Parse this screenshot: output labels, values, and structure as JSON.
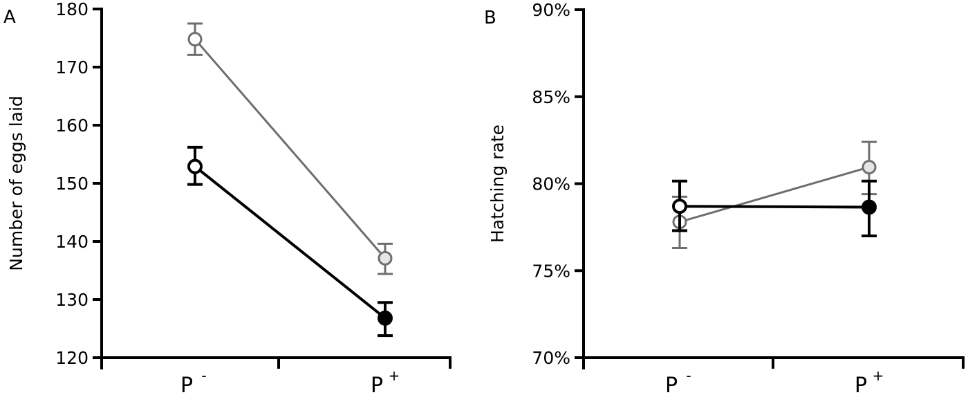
{
  "chart_data": [
    {
      "panel": "A",
      "type": "line",
      "title": "",
      "xlabel": "",
      "ylabel": "Number of eggs laid",
      "categories": [
        "P -",
        "P +"
      ],
      "ylim": [
        120,
        180
      ],
      "yticks": [
        120,
        130,
        140,
        150,
        160,
        170,
        180
      ],
      "ytick_labels": [
        "120",
        "130",
        "140",
        "150",
        "160",
        "170",
        "180"
      ],
      "grid": false,
      "series": [
        {
          "name": "gray (light open/filled markers)",
          "color": "#6e6e6e",
          "marker_fill": [
            "#ffffff",
            "#e6e6e6"
          ],
          "values": [
            174.8,
            137.1
          ],
          "error_low": [
            172.1,
            134.4
          ],
          "error_high": [
            177.5,
            139.6
          ]
        },
        {
          "name": "black",
          "color": "#000000",
          "marker_fill": [
            "#ffffff",
            "#000000"
          ],
          "values": [
            152.9,
            126.8
          ],
          "error_low": [
            149.8,
            123.8
          ],
          "error_high": [
            156.2,
            129.5
          ]
        }
      ]
    },
    {
      "panel": "B",
      "type": "line",
      "title": "",
      "xlabel": "",
      "ylabel": "Hatching rate",
      "categories": [
        "P -",
        "P +"
      ],
      "ylim": [
        70,
        90
      ],
      "yticks": [
        70,
        75,
        80,
        85,
        90
      ],
      "ytick_labels": [
        "70%",
        "75%",
        "80%",
        "85%",
        "90%"
      ],
      "grid": false,
      "series": [
        {
          "name": "gray (light open/filled markers)",
          "color": "#6e6e6e",
          "marker_fill": [
            "#ffffff",
            "#e6e6e6"
          ],
          "values": [
            77.8,
            80.95
          ],
          "error_low": [
            76.3,
            79.4
          ],
          "error_high": [
            79.25,
            82.4
          ]
        },
        {
          "name": "black",
          "color": "#000000",
          "marker_fill": [
            "#ffffff",
            "#000000"
          ],
          "values": [
            78.7,
            78.65
          ],
          "error_low": [
            77.3,
            77.0
          ],
          "error_high": [
            80.15,
            80.15
          ]
        }
      ]
    }
  ],
  "panels": [
    {
      "letter": "A",
      "x_labels": [
        {
          "base": "P",
          "sup": "-"
        },
        {
          "base": "P",
          "sup": "+"
        }
      ]
    },
    {
      "letter": "B",
      "x_labels": [
        {
          "base": "P",
          "sup": "-"
        },
        {
          "base": "P",
          "sup": "+"
        }
      ]
    }
  ]
}
